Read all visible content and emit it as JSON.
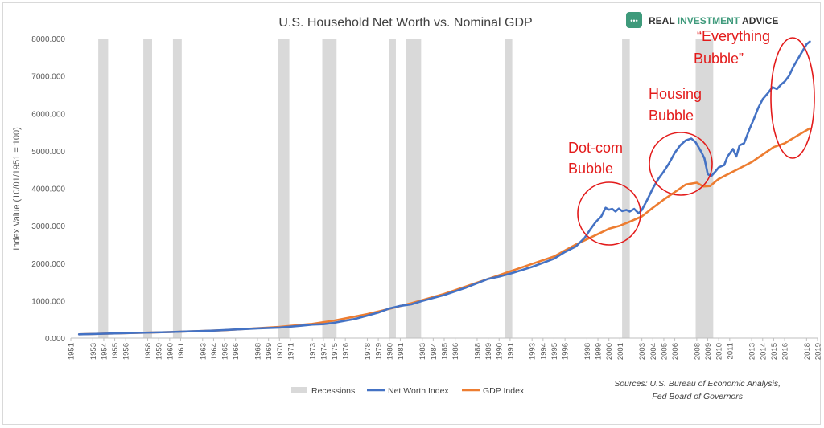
{
  "chart_data": {
    "type": "line",
    "title": "U.S. Household Net Worth vs. Nominal GDP",
    "brand": "REAL INVESTMENT ADVICE",
    "brand_parts": [
      "REAL ",
      "INVESTMENT",
      " ADVICE"
    ],
    "ylabel": "Index Value (10/01/1951 = 100)",
    "ylim": [
      0,
      8000
    ],
    "yticks": [
      "0.000",
      "1000.000",
      "2000.000",
      "3000.000",
      "4000.000",
      "5000.000",
      "6000.000",
      "7000.000",
      "8000.000"
    ],
    "xlim": [
      1951,
      2019
    ],
    "xticks": [
      1951,
      1953,
      1954,
      1955,
      1956,
      1958,
      1959,
      1960,
      1961,
      1963,
      1964,
      1965,
      1966,
      1968,
      1969,
      1970,
      1971,
      1973,
      1974,
      1975,
      1976,
      1978,
      1979,
      1980,
      1981,
      1983,
      1984,
      1985,
      1986,
      1988,
      1989,
      1990,
      1991,
      1993,
      1994,
      1995,
      1996,
      1998,
      1999,
      2000,
      2001,
      2003,
      2004,
      2005,
      2006,
      2008,
      2009,
      2010,
      2011,
      2013,
      2014,
      2015,
      2016,
      2018,
      2019
    ],
    "grid": false,
    "legend_position": "bottom",
    "legend": [
      "Recessions",
      "Net Worth Index",
      "GDP Index"
    ],
    "recessions": [
      [
        1953.5,
        1954.4
      ],
      [
        1957.6,
        1958.4
      ],
      [
        1960.3,
        1961.1
      ],
      [
        1969.9,
        1970.9
      ],
      [
        1973.9,
        1975.2
      ],
      [
        1980.0,
        1980.6
      ],
      [
        1981.5,
        1982.9
      ],
      [
        1990.5,
        1991.2
      ],
      [
        2001.2,
        2001.9
      ],
      [
        2007.9,
        2009.5
      ]
    ],
    "series": [
      {
        "name": "Net Worth Index",
        "color": "#4472C4",
        "x": [
          1951.75,
          1953,
          1955,
          1957,
          1960,
          1962,
          1964,
          1966,
          1968,
          1970,
          1972,
          1973,
          1974,
          1975,
          1977,
          1979,
          1980,
          1981,
          1982,
          1983,
          1985,
          1987,
          1989,
          1990,
          1991,
          1993,
          1995,
          1996,
          1997,
          1997.8,
          1998.3,
          1998.8,
          1999.3,
          1999.7,
          2000.0,
          2000.3,
          2000.6,
          2000.9,
          2001.2,
          2001.6,
          2001.9,
          2002.3,
          2002.7,
          2003.0,
          2003.5,
          2004.0,
          2004.5,
          2005.0,
          2005.5,
          2006.0,
          2006.5,
          2007.0,
          2007.5,
          2007.9,
          2008.4,
          2008.7,
          2009.0,
          2009.3,
          2009.7,
          2010.0,
          2010.5,
          2010.8,
          2011.3,
          2011.6,
          2011.9,
          2012.3,
          2012.8,
          2013.2,
          2013.6,
          2014.0,
          2014.5,
          2014.9,
          2015.3,
          2015.7,
          2016.0,
          2016.4,
          2016.8,
          2017.2,
          2017.6,
          2018.0,
          2018.3
        ],
        "values": [
          100,
          110,
          125,
          140,
          160,
          180,
          200,
          230,
          260,
          280,
          330,
          360,
          370,
          410,
          520,
          680,
          790,
          860,
          900,
          990,
          1150,
          1350,
          1580,
          1640,
          1720,
          1900,
          2120,
          2300,
          2450,
          2680,
          2900,
          3100,
          3250,
          3480,
          3430,
          3450,
          3380,
          3460,
          3390,
          3420,
          3380,
          3450,
          3330,
          3420,
          3700,
          4000,
          4250,
          4450,
          4680,
          4950,
          5150,
          5280,
          5330,
          5230,
          4980,
          4800,
          4380,
          4320,
          4450,
          4560,
          4620,
          4850,
          5050,
          4850,
          5150,
          5200,
          5580,
          5850,
          6150,
          6380,
          6550,
          6700,
          6650,
          6780,
          6850,
          7000,
          7250,
          7450,
          7650,
          7850,
          7920
        ]
      },
      {
        "name": "GDP Index",
        "color": "#ED7D31",
        "x": [
          1951.75,
          1955,
          1960,
          1965,
          1970,
          1973,
          1975,
          1978,
          1980,
          1982,
          1985,
          1988,
          1990,
          1992,
          1995,
          1997,
          1999,
          2000,
          2001,
          2002,
          2003,
          2004,
          2005,
          2006,
          2007,
          2008,
          2008.6,
          2009.2,
          2010,
          2011,
          2012,
          2013,
          2014,
          2015,
          2016,
          2017,
          2018.3
        ],
        "values": [
          100,
          125,
          160,
          210,
          300,
          380,
          470,
          640,
          780,
          930,
          1180,
          1480,
          1680,
          1880,
          2180,
          2500,
          2780,
          2920,
          3000,
          3120,
          3250,
          3480,
          3700,
          3900,
          4100,
          4150,
          4050,
          4060,
          4250,
          4400,
          4550,
          4700,
          4900,
          5100,
          5200,
          5380,
          5600
        ]
      }
    ],
    "annotations": [
      {
        "id": "dotcom",
        "lines": [
          "Dot-com",
          "Bubble"
        ]
      },
      {
        "id": "housing",
        "lines": [
          "Housing",
          "Bubble"
        ]
      },
      {
        "id": "everything",
        "lines": [
          "“Everything",
          "Bubble”"
        ]
      }
    ],
    "sources": [
      "Sources: U.S. Bureau of Economic Analysis,",
      "Fed Board of Governors"
    ]
  }
}
